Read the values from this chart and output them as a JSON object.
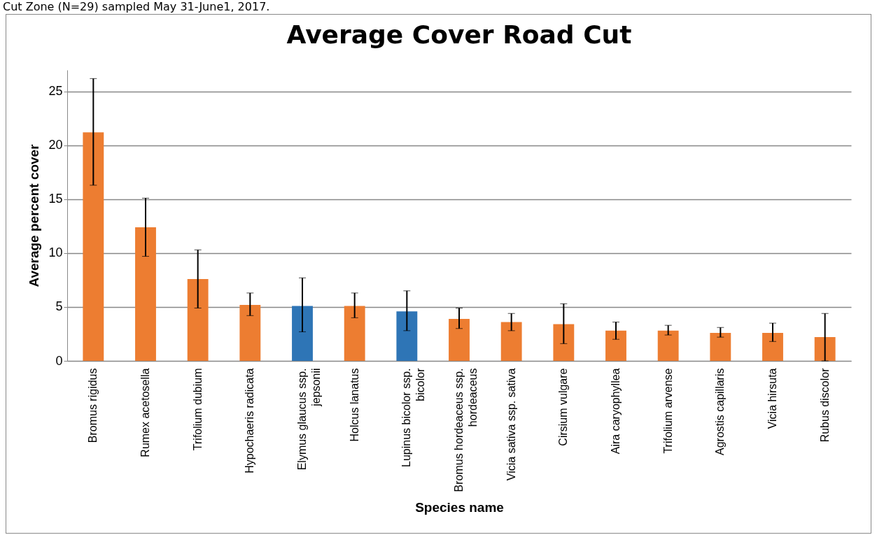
{
  "chart_data": {
    "type": "bar",
    "title": "Average Cover Road Cut",
    "xlabel": "Species name",
    "ylabel": "Average percent cover",
    "annotations": [
      "Cut Zone (N=29) sampled May 31-June1, 2017."
    ],
    "categories": [
      "Bromus rigidus",
      "Rumex acetosella",
      "Trifolium dubium",
      "Hypochaeris radicata",
      "Elymus glaucus ssp. jepsonii",
      "Holcus lanatus",
      "Lupinus bicolor ssp. bicolor",
      "Bromus hordeaceus ssp. hordeaceus",
      "Vicia sativa ssp. sativa",
      "Cirsium vulgare",
      "Aira caryophyllea",
      "Trifolium arvense",
      "Agrostis capillaris",
      "Vicia hirsuta",
      "Rubus discolor"
    ],
    "values": [
      21.2,
      12.4,
      7.6,
      5.2,
      5.1,
      5.1,
      4.6,
      3.9,
      3.6,
      3.4,
      2.8,
      2.8,
      2.6,
      2.6,
      2.2
    ],
    "errors": [
      [
        16.3,
        26.2
      ],
      [
        9.7,
        15.1
      ],
      [
        4.9,
        10.3
      ],
      [
        4.2,
        6.3
      ],
      [
        2.7,
        7.7
      ],
      [
        4.0,
        6.3
      ],
      [
        2.8,
        6.5
      ],
      [
        3.0,
        4.9
      ],
      [
        2.8,
        4.4
      ],
      [
        1.6,
        5.3
      ],
      [
        2.0,
        3.6
      ],
      [
        2.4,
        3.3
      ],
      [
        2.2,
        3.1
      ],
      [
        1.8,
        3.5
      ],
      [
        0.0,
        4.4
      ]
    ],
    "colors": [
      "#ed7d31",
      "#ed7d31",
      "#ed7d31",
      "#ed7d31",
      "#2e75b6",
      "#ed7d31",
      "#2e75b6",
      "#ed7d31",
      "#ed7d31",
      "#ed7d31",
      "#ed7d31",
      "#ed7d31",
      "#ed7d31",
      "#ed7d31",
      "#ed7d31"
    ],
    "ylim": [
      0,
      27
    ],
    "yticks": [
      0,
      5,
      10,
      15,
      20,
      25
    ],
    "grid": "y"
  }
}
